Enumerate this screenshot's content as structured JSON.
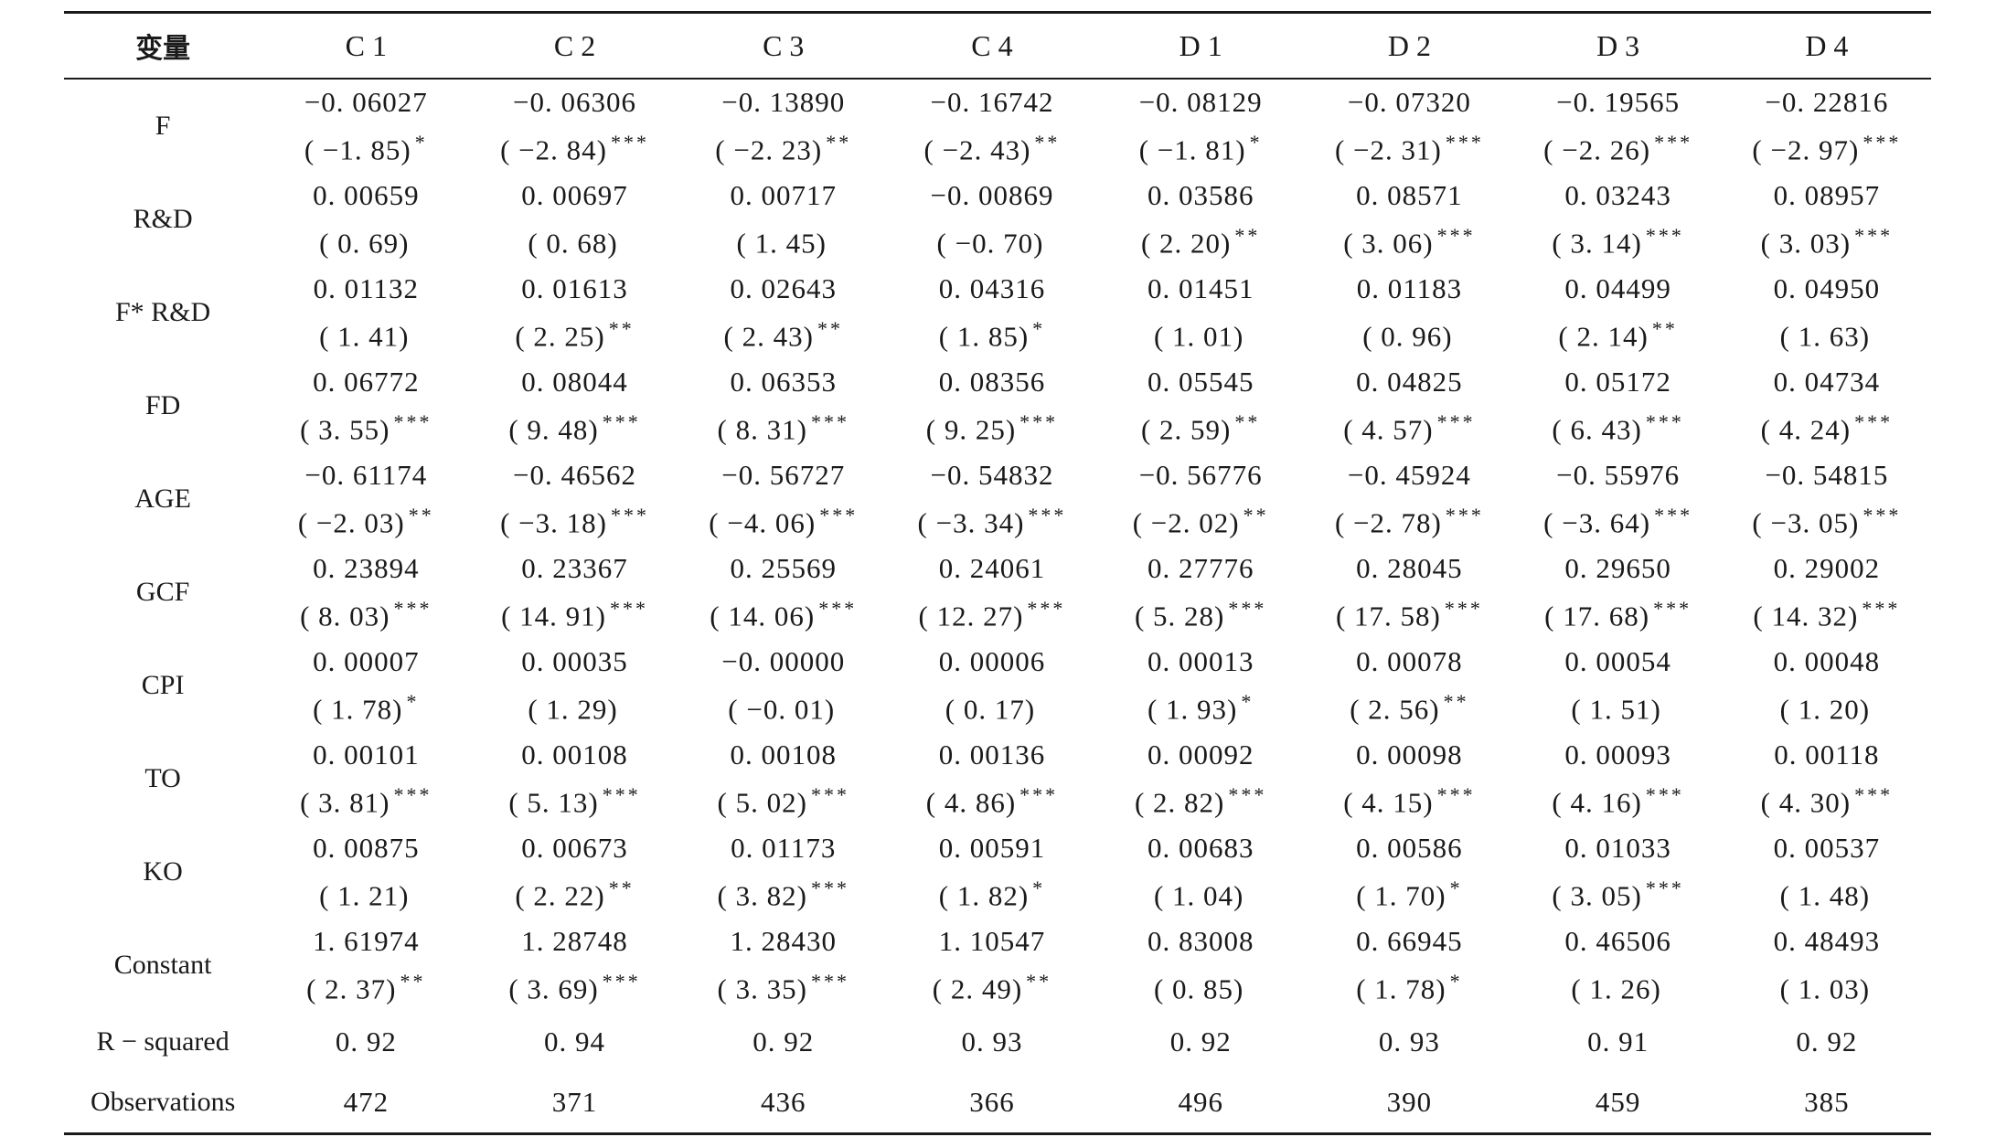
{
  "table": {
    "header": {
      "label": "变量",
      "columns": [
        "C 1",
        "C 2",
        "C 3",
        "C 4",
        "D 1",
        "D 2",
        "D 3",
        "D 4"
      ]
    },
    "rows": [
      {
        "label": "F",
        "cells": [
          {
            "coef": "−0. 06027",
            "t": "( −1. 85)",
            "stars": "*"
          },
          {
            "coef": "−0. 06306",
            "t": "( −2. 84)",
            "stars": "***"
          },
          {
            "coef": "−0. 13890",
            "t": "( −2. 23)",
            "stars": "**"
          },
          {
            "coef": "−0. 16742",
            "t": "( −2. 43)",
            "stars": "**"
          },
          {
            "coef": "−0. 08129",
            "t": "( −1. 81)",
            "stars": "*"
          },
          {
            "coef": "−0. 07320",
            "t": "( −2. 31)",
            "stars": "***"
          },
          {
            "coef": "−0. 19565",
            "t": "( −2. 26)",
            "stars": "***"
          },
          {
            "coef": "−0. 22816",
            "t": "( −2. 97)",
            "stars": "***"
          }
        ]
      },
      {
        "label": "R&D",
        "cells": [
          {
            "coef": "0. 00659",
            "t": "( 0. 69)",
            "stars": ""
          },
          {
            "coef": "0. 00697",
            "t": "( 0. 68)",
            "stars": ""
          },
          {
            "coef": "0. 00717",
            "t": "( 1. 45)",
            "stars": ""
          },
          {
            "coef": "−0. 00869",
            "t": "( −0. 70)",
            "stars": ""
          },
          {
            "coef": "0. 03586",
            "t": "( 2. 20)",
            "stars": "**"
          },
          {
            "coef": "0. 08571",
            "t": "( 3. 06)",
            "stars": "***"
          },
          {
            "coef": "0. 03243",
            "t": "( 3. 14)",
            "stars": "***"
          },
          {
            "coef": "0. 08957",
            "t": "( 3. 03)",
            "stars": "***"
          }
        ]
      },
      {
        "label": "F* R&D",
        "cells": [
          {
            "coef": "0. 01132",
            "t": "( 1. 41)",
            "stars": ""
          },
          {
            "coef": "0. 01613",
            "t": "( 2. 25)",
            "stars": "**"
          },
          {
            "coef": "0. 02643",
            "t": "( 2. 43)",
            "stars": "**"
          },
          {
            "coef": "0. 04316",
            "t": "( 1. 85)",
            "stars": "*"
          },
          {
            "coef": "0. 01451",
            "t": "( 1. 01)",
            "stars": ""
          },
          {
            "coef": "0. 01183",
            "t": "( 0. 96)",
            "stars": ""
          },
          {
            "coef": "0. 04499",
            "t": "( 2. 14)",
            "stars": "**"
          },
          {
            "coef": "0. 04950",
            "t": "( 1. 63)",
            "stars": ""
          }
        ]
      },
      {
        "label": "FD",
        "cells": [
          {
            "coef": "0. 06772",
            "t": "( 3. 55)",
            "stars": "***"
          },
          {
            "coef": "0. 08044",
            "t": "( 9. 48)",
            "stars": "***"
          },
          {
            "coef": "0. 06353",
            "t": "( 8. 31)",
            "stars": "***"
          },
          {
            "coef": "0. 08356",
            "t": "( 9. 25)",
            "stars": "***"
          },
          {
            "coef": "0. 05545",
            "t": "( 2. 59)",
            "stars": "**"
          },
          {
            "coef": "0. 04825",
            "t": "( 4. 57)",
            "stars": "***"
          },
          {
            "coef": "0. 05172",
            "t": "( 6. 43)",
            "stars": "***"
          },
          {
            "coef": "0. 04734",
            "t": "( 4. 24)",
            "stars": "***"
          }
        ]
      },
      {
        "label": "AGE",
        "cells": [
          {
            "coef": "−0. 61174",
            "t": "( −2. 03)",
            "stars": "**"
          },
          {
            "coef": "−0. 46562",
            "t": "( −3. 18)",
            "stars": "***"
          },
          {
            "coef": "−0. 56727",
            "t": "( −4. 06)",
            "stars": "***"
          },
          {
            "coef": "−0. 54832",
            "t": "( −3. 34)",
            "stars": "***"
          },
          {
            "coef": "−0. 56776",
            "t": "( −2. 02)",
            "stars": "**"
          },
          {
            "coef": "−0. 45924",
            "t": "( −2. 78)",
            "stars": "***"
          },
          {
            "coef": "−0. 55976",
            "t": "( −3. 64)",
            "stars": "***"
          },
          {
            "coef": "−0. 54815",
            "t": "( −3. 05)",
            "stars": "***"
          }
        ]
      },
      {
        "label": "GCF",
        "cells": [
          {
            "coef": "0. 23894",
            "t": "( 8. 03)",
            "stars": "***"
          },
          {
            "coef": "0. 23367",
            "t": "( 14. 91)",
            "stars": "***"
          },
          {
            "coef": "0. 25569",
            "t": "( 14. 06)",
            "stars": "***"
          },
          {
            "coef": "0. 24061",
            "t": "( 12. 27)",
            "stars": "***"
          },
          {
            "coef": "0. 27776",
            "t": "( 5. 28)",
            "stars": "***"
          },
          {
            "coef": "0. 28045",
            "t": "( 17. 58)",
            "stars": "***"
          },
          {
            "coef": "0. 29650",
            "t": "( 17. 68)",
            "stars": "***"
          },
          {
            "coef": "0. 29002",
            "t": "( 14. 32)",
            "stars": "***"
          }
        ]
      },
      {
        "label": "CPI",
        "cells": [
          {
            "coef": "0. 00007",
            "t": "( 1. 78)",
            "stars": "*"
          },
          {
            "coef": "0. 00035",
            "t": "( 1. 29)",
            "stars": ""
          },
          {
            "coef": "−0. 00000",
            "t": "( −0. 01)",
            "stars": ""
          },
          {
            "coef": "0. 00006",
            "t": "( 0. 17)",
            "stars": ""
          },
          {
            "coef": "0. 00013",
            "t": "( 1. 93)",
            "stars": "*"
          },
          {
            "coef": "0. 00078",
            "t": "( 2. 56)",
            "stars": "**"
          },
          {
            "coef": "0. 00054",
            "t": "( 1. 51)",
            "stars": ""
          },
          {
            "coef": "0. 00048",
            "t": "( 1. 20)",
            "stars": ""
          }
        ]
      },
      {
        "label": "TO",
        "cells": [
          {
            "coef": "0. 00101",
            "t": "( 3. 81)",
            "stars": "***"
          },
          {
            "coef": "0. 00108",
            "t": "( 5. 13)",
            "stars": "***"
          },
          {
            "coef": "0. 00108",
            "t": "( 5. 02)",
            "stars": "***"
          },
          {
            "coef": "0. 00136",
            "t": "( 4. 86)",
            "stars": "***"
          },
          {
            "coef": "0. 00092",
            "t": "( 2. 82)",
            "stars": "***"
          },
          {
            "coef": "0. 00098",
            "t": "( 4. 15)",
            "stars": "***"
          },
          {
            "coef": "0. 00093",
            "t": "( 4. 16)",
            "stars": "***"
          },
          {
            "coef": "0. 00118",
            "t": "( 4. 30)",
            "stars": "***"
          }
        ]
      },
      {
        "label": "KO",
        "cells": [
          {
            "coef": "0. 00875",
            "t": "( 1. 21)",
            "stars": ""
          },
          {
            "coef": "0. 00673",
            "t": "( 2. 22)",
            "stars": "**"
          },
          {
            "coef": "0. 01173",
            "t": "( 3. 82)",
            "stars": "***"
          },
          {
            "coef": "0. 00591",
            "t": "( 1. 82)",
            "stars": "*"
          },
          {
            "coef": "0. 00683",
            "t": "( 1. 04)",
            "stars": ""
          },
          {
            "coef": "0. 00586",
            "t": "( 1. 70)",
            "stars": "*"
          },
          {
            "coef": "0. 01033",
            "t": "( 3. 05)",
            "stars": "***"
          },
          {
            "coef": "0. 00537",
            "t": "( 1. 48)",
            "stars": ""
          }
        ]
      },
      {
        "label": "Constant",
        "cells": [
          {
            "coef": "1. 61974",
            "t": "( 2. 37)",
            "stars": "**"
          },
          {
            "coef": "1. 28748",
            "t": "( 3. 69)",
            "stars": "***"
          },
          {
            "coef": "1. 28430",
            "t": "( 3. 35)",
            "stars": "***"
          },
          {
            "coef": "1. 10547",
            "t": "( 2. 49)",
            "stars": "**"
          },
          {
            "coef": "0. 83008",
            "t": "( 0. 85)",
            "stars": ""
          },
          {
            "coef": "0. 66945",
            "t": "( 1. 78)",
            "stars": "*"
          },
          {
            "coef": "0. 46506",
            "t": "( 1. 26)",
            "stars": ""
          },
          {
            "coef": "0. 48493",
            "t": "( 1. 03)",
            "stars": ""
          }
        ]
      }
    ],
    "stats": [
      {
        "label": "R − squared",
        "values": [
          "0. 92",
          "0. 94",
          "0. 92",
          "0. 93",
          "0. 92",
          "0. 93",
          "0. 91",
          "0. 92"
        ]
      },
      {
        "label": "Observations",
        "values": [
          "472",
          "371",
          "436",
          "366",
          "496",
          "390",
          "459",
          "385"
        ]
      }
    ]
  }
}
